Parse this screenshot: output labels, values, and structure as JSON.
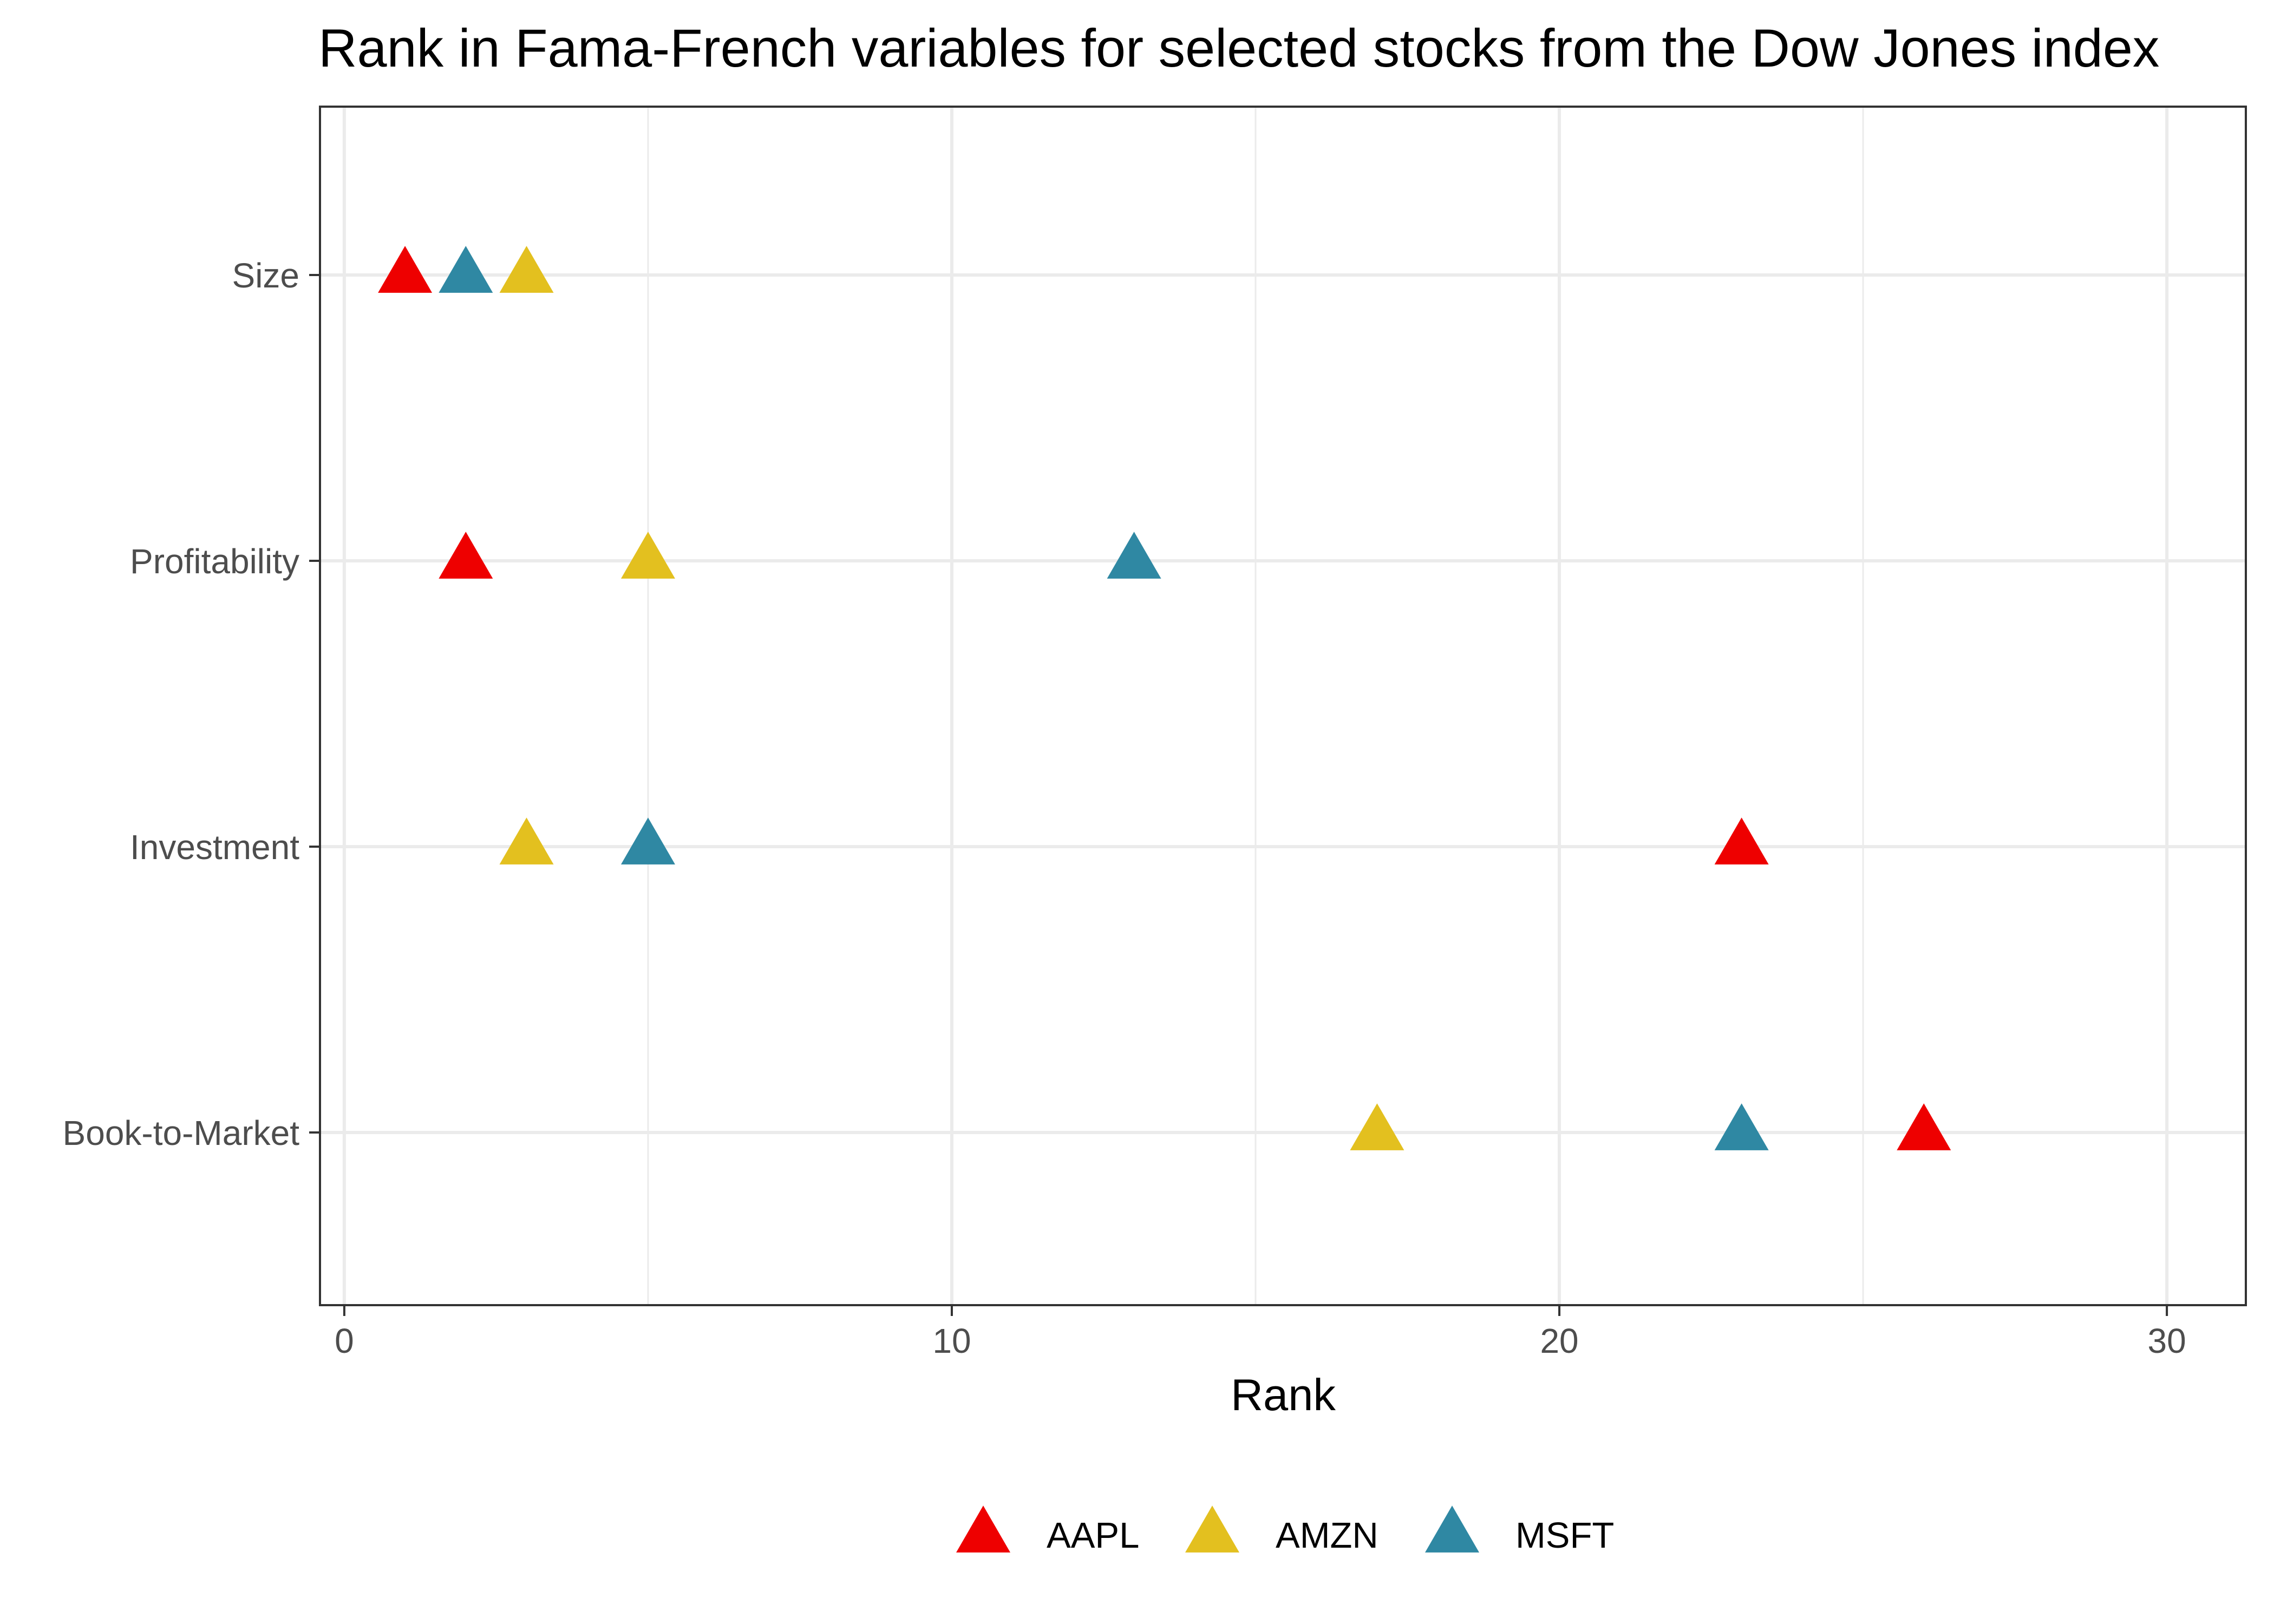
{
  "chart_data": {
    "type": "scatter",
    "title": "Rank in Fama-French variables for selected stocks from the Dow Jones index",
    "xlabel": "Rank",
    "ylabel": "",
    "xlim": [
      -0.4,
      31.3
    ],
    "x_ticks": [
      0,
      10,
      20,
      30
    ],
    "categories": [
      "Size",
      "Profitability",
      "Investment",
      "Book-to-Market"
    ],
    "grid": true,
    "legend_position": "bottom",
    "marker": "triangle",
    "series": [
      {
        "name": "AAPL",
        "color": "#ee0000",
        "values": [
          1,
          2,
          23,
          26
        ]
      },
      {
        "name": "AMZN",
        "color": "#e3c01f",
        "values": [
          3,
          5,
          3,
          17
        ]
      },
      {
        "name": "MSFT",
        "color": "#2f88a3",
        "values": [
          2,
          13,
          5,
          23
        ]
      }
    ]
  }
}
